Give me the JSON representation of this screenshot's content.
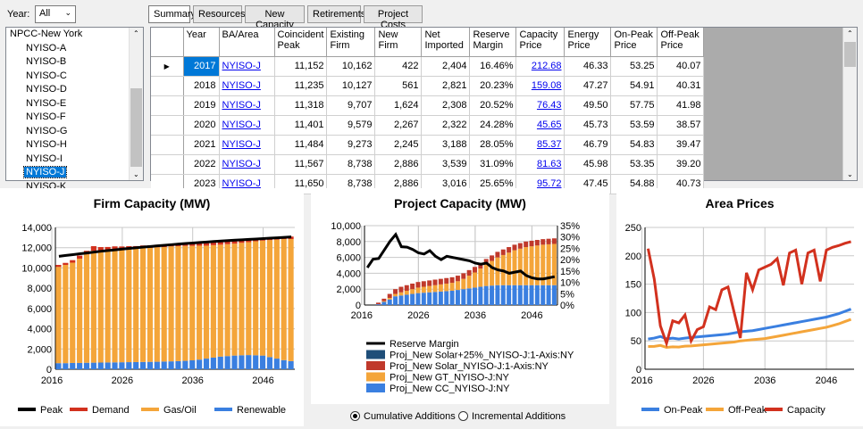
{
  "year_selector": {
    "label": "Year:",
    "value": "All"
  },
  "tabs": [
    "Summary",
    "Resources",
    "New Capacity",
    "Retirements",
    "Project Costs"
  ],
  "area_list": {
    "items": [
      "NPCC-New York",
      "NYISO-A",
      "NYISO-B",
      "NYISO-C",
      "NYISO-D",
      "NYISO-E",
      "NYISO-F",
      "NYISO-G",
      "NYISO-H",
      "NYISO-I",
      "NYISO-J",
      "NYISO-K"
    ],
    "selected": "NYISO-J"
  },
  "grid": {
    "columns": [
      "Year",
      "BA/Area",
      "Coincident Peak",
      "Existing Firm",
      "New Firm",
      "Net Imported",
      "Reserve Margin",
      "Capacity Price",
      "Energy Price",
      "On-Peak Price",
      "Off-Peak Price"
    ],
    "rows": [
      [
        "2017",
        "NYISO-J",
        "11,152",
        "10,162",
        "422",
        "2,404",
        "16.46%",
        "212.68",
        "46.33",
        "53.25",
        "40.07"
      ],
      [
        "2018",
        "NYISO-J",
        "11,235",
        "10,127",
        "561",
        "2,821",
        "20.23%",
        "159.08",
        "47.27",
        "54.91",
        "40.31"
      ],
      [
        "2019",
        "NYISO-J",
        "11,318",
        "9,707",
        "1,624",
        "2,308",
        "20.52%",
        "76.43",
        "49.50",
        "57.75",
        "41.98"
      ],
      [
        "2020",
        "NYISO-J",
        "11,401",
        "9,579",
        "2,267",
        "2,322",
        "24.28%",
        "45.65",
        "45.73",
        "53.59",
        "38.57"
      ],
      [
        "2021",
        "NYISO-J",
        "11,484",
        "9,273",
        "2,245",
        "3,188",
        "28.05%",
        "85.37",
        "46.79",
        "54.83",
        "39.47"
      ],
      [
        "2022",
        "NYISO-J",
        "11,567",
        "8,738",
        "2,886",
        "3,539",
        "31.09%",
        "81.63",
        "45.98",
        "53.35",
        "39.20"
      ],
      [
        "2023",
        "NYISO-J",
        "11,650",
        "8,738",
        "2,886",
        "3,016",
        "25.65%",
        "95.72",
        "47.45",
        "54.88",
        "40.73"
      ]
    ],
    "current_row_marker": "▶"
  },
  "firm_chart": {
    "title": "Firm Capacity (MW)",
    "yticks": [
      "0",
      "2,000",
      "4,000",
      "6,000",
      "8,000",
      "10,000",
      "12,000",
      "14,000"
    ],
    "xticks": [
      "2016",
      "2026",
      "2036",
      "2046"
    ],
    "legend": [
      "Peak",
      "Demand",
      "Gas/Oil",
      "Renewable"
    ],
    "colors": {
      "peak": "#000000",
      "demand": "#d2311e",
      "gas": "#f4a53a",
      "renewable": "#3a7fe0"
    }
  },
  "project_chart": {
    "title": "Project Capacity (MW)",
    "yticks_left": [
      "0",
      "2,000",
      "4,000",
      "6,000",
      "8,000",
      "10,000"
    ],
    "yticks_right": [
      "0%",
      "5%",
      "10%",
      "15%",
      "20%",
      "25%",
      "30%",
      "35%"
    ],
    "xticks": [
      "2016",
      "2026",
      "2036",
      "2046"
    ],
    "legend": [
      "Reserve Margin",
      "Proj_New Solar+25%_NYISO-J:1-Axis:NY",
      "Proj_New Solar_NYISO-J:1-Axis:NY",
      "Proj_New GT_NYISO-J:NY",
      "Proj_New CC_NYISO-J:NY"
    ],
    "colors": {
      "rm": "#000000",
      "solar25": "#1f4e79",
      "solar": "#c0392b",
      "gt": "#f4a53a",
      "cc": "#3a7fe0"
    }
  },
  "price_chart": {
    "title": "Area Prices",
    "yticks": [
      "0",
      "50",
      "100",
      "150",
      "200",
      "250"
    ],
    "xticks": [
      "2016",
      "2026",
      "2036",
      "2046"
    ],
    "legend": [
      "On-Peak",
      "Off-Peak",
      "Capacity"
    ],
    "colors": {
      "on": "#3a7fe0",
      "off": "#f4a53a",
      "cap": "#d2311e"
    }
  },
  "radios": {
    "cumulative": "Cumulative Additions",
    "incremental": "Incremental Additions",
    "selected": "cumulative"
  },
  "chart_data": [
    {
      "type": "bar",
      "title": "Firm Capacity (MW)",
      "x": [
        2017,
        2018,
        2019,
        2020,
        2021,
        2022,
        2023,
        2024,
        2025,
        2026,
        2027,
        2028,
        2029,
        2030,
        2031,
        2032,
        2033,
        2034,
        2035,
        2036,
        2037,
        2038,
        2039,
        2040,
        2041,
        2042,
        2043,
        2044,
        2045,
        2046,
        2047,
        2048,
        2049,
        2050
      ],
      "ylim": [
        0,
        14000
      ],
      "series": [
        {
          "name": "Renewable",
          "values": [
            600,
            600,
            620,
            620,
            640,
            650,
            660,
            670,
            680,
            690,
            700,
            710,
            720,
            730,
            740,
            760,
            780,
            800,
            830,
            880,
            950,
            1050,
            1150,
            1250,
            1300,
            1350,
            1380,
            1400,
            1380,
            1350,
            1200,
            1050,
            900,
            800
          ]
        },
        {
          "name": "Gas/Oil",
          "values": [
            9500,
            9700,
            9900,
            10300,
            10700,
            11050,
            11050,
            11100,
            11150,
            11150,
            11200,
            11200,
            11250,
            11250,
            11300,
            11300,
            11350,
            11350,
            11350,
            11300,
            11250,
            11150,
            11100,
            11050,
            11050,
            11050,
            11100,
            11150,
            11250,
            11350,
            11550,
            11750,
            11950,
            12050
          ]
        },
        {
          "name": "Demand",
          "values": [
            200,
            200,
            250,
            300,
            350,
            450,
            350,
            300,
            300,
            280,
            250,
            250,
            250,
            250,
            250,
            250,
            250,
            250,
            250,
            250,
            250,
            250,
            250,
            250,
            250,
            250,
            250,
            250,
            250,
            250,
            250,
            250,
            250,
            250
          ]
        },
        {
          "name": "Peak",
          "values": [
            11152,
            11235,
            11318,
            11401,
            11484,
            11567,
            11650,
            11720,
            11790,
            11860,
            11930,
            12000,
            12060,
            12120,
            12180,
            12240,
            12300,
            12360,
            12410,
            12460,
            12510,
            12560,
            12610,
            12660,
            12700,
            12740,
            12780,
            12820,
            12860,
            12900,
            12940,
            12980,
            13020,
            13060
          ]
        }
      ]
    },
    {
      "type": "bar",
      "title": "Project Capacity (MW)",
      "x": [
        2017,
        2018,
        2019,
        2020,
        2021,
        2022,
        2023,
        2024,
        2025,
        2026,
        2027,
        2028,
        2029,
        2030,
        2031,
        2032,
        2033,
        2034,
        2035,
        2036,
        2037,
        2038,
        2039,
        2040,
        2041,
        2042,
        2043,
        2044,
        2045,
        2046,
        2047,
        2048,
        2049,
        2050
      ],
      "ylim": [
        0,
        10000
      ],
      "y2lim": [
        0,
        35
      ],
      "series": [
        {
          "name": "Proj_New CC_NYISO-J:NY",
          "values": [
            0,
            0,
            100,
            400,
            700,
            1100,
            1200,
            1300,
            1400,
            1500,
            1550,
            1600,
            1650,
            1700,
            1750,
            1800,
            1900,
            2000,
            2100,
            2200,
            2300,
            2400,
            2450,
            2500,
            2500,
            2500,
            2500,
            2500,
            2500,
            2500,
            2500,
            2500,
            2500,
            2500
          ]
        },
        {
          "name": "Proj_New GT_NYISO-J:NY",
          "values": [
            0,
            0,
            0,
            100,
            200,
            300,
            400,
            500,
            600,
            700,
            750,
            800,
            850,
            900,
            950,
            1000,
            1100,
            1300,
            1600,
            1900,
            2300,
            2700,
            3100,
            3500,
            3800,
            4100,
            4400,
            4600,
            4800,
            4900,
            5000,
            5100,
            5150,
            5200
          ]
        },
        {
          "name": "Proj_New Solar_NYISO-J:1-Axis:NY",
          "values": [
            0,
            0,
            200,
            300,
            500,
            600,
            700,
            700,
            700,
            700,
            700,
            700,
            700,
            700,
            700,
            700,
            700,
            700,
            700,
            700,
            700,
            700,
            700,
            700,
            700,
            700,
            700,
            700,
            700,
            700,
            700,
            700,
            700,
            700
          ]
        },
        {
          "name": "Proj_New Solar+25%_NYISO-J:1-Axis:NY",
          "values": [
            0,
            0,
            0,
            0,
            0,
            0,
            0,
            0,
            0,
            0,
            0,
            0,
            0,
            0,
            0,
            0,
            0,
            0,
            0,
            0,
            0,
            0,
            0,
            0,
            0,
            0,
            0,
            0,
            0,
            0,
            0,
            0,
            0,
            0
          ]
        },
        {
          "name": "Reserve Margin",
          "values": [
            16.5,
            20.2,
            20.5,
            24.3,
            28.1,
            31.1,
            25.7,
            25.5,
            24.5,
            23,
            22.5,
            24,
            21.5,
            20,
            21.5,
            21,
            20.5,
            20,
            19.5,
            18.5,
            18,
            18.5,
            16.5,
            15.5,
            15,
            14,
            14.5,
            15,
            13,
            12,
            11.5,
            11.5,
            12,
            12.5
          ]
        }
      ]
    },
    {
      "type": "line",
      "title": "Area Prices",
      "x": [
        2017,
        2018,
        2019,
        2020,
        2021,
        2022,
        2023,
        2024,
        2025,
        2026,
        2027,
        2028,
        2029,
        2030,
        2031,
        2032,
        2033,
        2034,
        2035,
        2036,
        2037,
        2038,
        2039,
        2040,
        2041,
        2042,
        2043,
        2044,
        2045,
        2046,
        2047,
        2048,
        2049,
        2050
      ],
      "ylim": [
        0,
        250
      ],
      "series": [
        {
          "name": "On-Peak",
          "values": [
            53.25,
            54.91,
            57.75,
            53.59,
            54.83,
            53.35,
            54.88,
            56,
            57,
            58,
            59,
            60,
            61,
            62,
            64,
            66,
            67,
            68,
            70,
            72,
            74,
            76,
            78,
            80,
            82,
            84,
            86,
            88,
            90,
            92,
            95,
            98,
            102,
            106
          ]
        },
        {
          "name": "Off-Peak",
          "values": [
            40.07,
            40.31,
            41.98,
            38.57,
            39.47,
            39.2,
            40.73,
            41,
            42,
            43,
            44,
            45,
            46,
            47,
            48,
            50,
            51,
            52,
            53,
            54,
            56,
            58,
            60,
            62,
            64,
            66,
            68,
            70,
            72,
            74,
            77,
            80,
            84,
            88
          ]
        },
        {
          "name": "Capacity",
          "values": [
            212.68,
            159.08,
            76.43,
            45.65,
            85.37,
            81.63,
            95.72,
            50,
            70,
            75,
            110,
            105,
            140,
            145,
            100,
            55,
            170,
            140,
            175,
            180,
            185,
            195,
            148,
            205,
            210,
            150,
            205,
            210,
            155,
            210,
            215,
            218,
            222,
            225
          ]
        }
      ]
    }
  ]
}
